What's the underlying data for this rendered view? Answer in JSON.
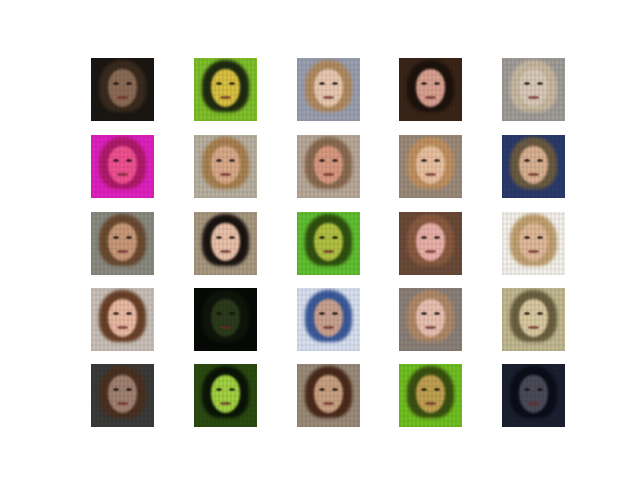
{
  "grid": {
    "rows": 5,
    "cols": 5,
    "tiles": [
      {
        "bg": "#1a1612",
        "hair": "#3a2a1e",
        "face": "#8a6a55"
      },
      {
        "bg": "#7fbf2a",
        "hair": "#1e2a10",
        "face": "#d8c040"
      },
      {
        "bg": "#9aa0b0",
        "hair": "#b08a60",
        "face": "#e8c8b0"
      },
      {
        "bg": "#3a2418",
        "hair": "#1c120c",
        "face": "#d8a090"
      },
      {
        "bg": "#a09c98",
        "hair": "#c8b8a0",
        "face": "#d8c8b8"
      },
      {
        "bg": "#e020c0",
        "hair": "#b01a6a",
        "face": "#f05090"
      },
      {
        "bg": "#b8b0a0",
        "hair": "#a88050",
        "face": "#d8a888"
      },
      {
        "bg": "#b8a898",
        "hair": "#8a6a50",
        "face": "#d89880"
      },
      {
        "bg": "#9a8a7a",
        "hair": "#c09060",
        "face": "#e8c0a0"
      },
      {
        "bg": "#2a3a6a",
        "hair": "#6a5a40",
        "face": "#d8b090"
      },
      {
        "bg": "#8a8a80",
        "hair": "#6a4a30",
        "face": "#c89878"
      },
      {
        "bg": "#a89880",
        "hair": "#1a1410",
        "face": "#e8c0a8"
      },
      {
        "bg": "#60c030",
        "hair": "#305010",
        "face": "#b0c040"
      },
      {
        "bg": "#6a4a38",
        "hair": "#8a5a40",
        "face": "#e8b0a8"
      },
      {
        "bg": "#f4f0ea",
        "hair": "#c0a070",
        "face": "#e0b898"
      },
      {
        "bg": "#c8c0b8",
        "hair": "#6a4028",
        "face": "#e8b8a0"
      },
      {
        "bg": "#060806",
        "hair": "#0e140a",
        "face": "#2a3a1a"
      },
      {
        "bg": "#d8e0f0",
        "hair": "#3a5a9a",
        "face": "#c8a090"
      },
      {
        "bg": "#8a8078",
        "hair": "#b08868",
        "face": "#e8c0b0"
      },
      {
        "bg": "#c0b890",
        "hair": "#6a6040",
        "face": "#d8c8a0"
      },
      {
        "bg": "#3a3a38",
        "hair": "#4a3020",
        "face": "#a08070"
      },
      {
        "bg": "#2a4a10",
        "hair": "#0a1406",
        "face": "#a0d040"
      },
      {
        "bg": "#9a8a78",
        "hair": "#4a2a1a",
        "face": "#c8a080"
      },
      {
        "bg": "#70c020",
        "hair": "#3a5010",
        "face": "#c0a050"
      },
      {
        "bg": "#1a2030",
        "hair": "#0a0c18",
        "face": "#4a4a58"
      }
    ]
  }
}
